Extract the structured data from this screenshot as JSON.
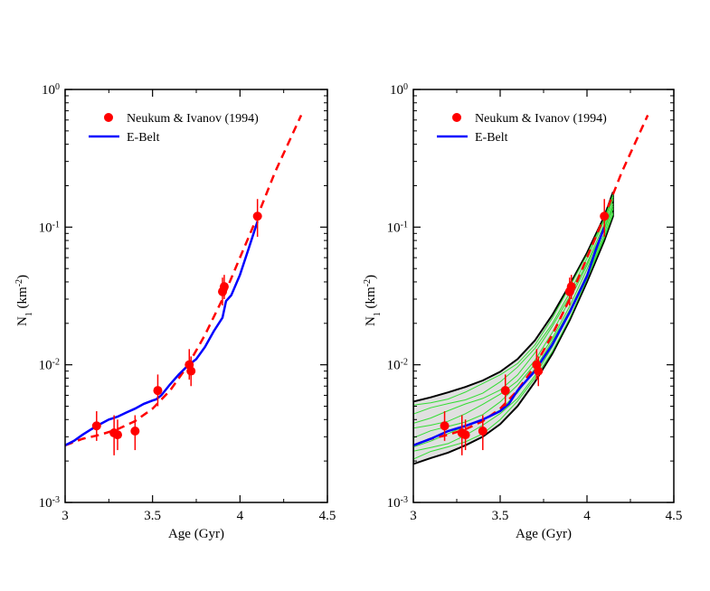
{
  "chart_data": [
    {
      "type": "scatter",
      "panel": "left",
      "xlabel": "Age (Gyr)",
      "ylabel": {
        "main": "N",
        "sub": "1",
        "unit_pre": " (km",
        "unit_sup": "-2",
        "unit_post": ")"
      },
      "xlim": [
        3,
        4.5
      ],
      "ylim": [
        0.001,
        1
      ],
      "yscale": "log",
      "xticks": [
        3,
        3.5,
        4,
        4.5
      ],
      "xtick_labels": [
        "3",
        "3.5",
        "4",
        "4.5"
      ],
      "yticks": [
        {
          "value": 0.001,
          "base": "10",
          "exp": "-3"
        },
        {
          "value": 0.01,
          "base": "10",
          "exp": "-2"
        },
        {
          "value": 0.1,
          "base": "10",
          "exp": "-1"
        },
        {
          "value": 1,
          "base": "10",
          "exp": "0"
        }
      ],
      "legend": [
        {
          "label": "Neukum & Ivanov (1994)",
          "kind": "marker",
          "color": "#ff0000"
        },
        {
          "label": "E-Belt",
          "kind": "line",
          "color": "#0000ff"
        }
      ],
      "series": [
        {
          "name": "Neukum & Ivanov (1994)",
          "kind": "points",
          "color": "#ff0000",
          "points": [
            {
              "x": 3.18,
              "y": 0.0036,
              "ylo": 0.0028,
              "yhi": 0.0046
            },
            {
              "x": 3.28,
              "y": 0.0032,
              "ylo": 0.0022,
              "yhi": 0.0043
            },
            {
              "x": 3.3,
              "y": 0.0031,
              "ylo": 0.0024,
              "yhi": 0.004
            },
            {
              "x": 3.4,
              "y": 0.0033,
              "ylo": 0.0024,
              "yhi": 0.0043
            },
            {
              "x": 3.53,
              "y": 0.0065,
              "ylo": 0.005,
              "yhi": 0.0085
            },
            {
              "x": 3.71,
              "y": 0.01,
              "ylo": 0.0078,
              "yhi": 0.013
            },
            {
              "x": 3.72,
              "y": 0.009,
              "ylo": 0.007,
              "yhi": 0.0115
            },
            {
              "x": 3.9,
              "y": 0.034,
              "ylo": 0.027,
              "yhi": 0.043
            },
            {
              "x": 3.91,
              "y": 0.037,
              "ylo": 0.03,
              "yhi": 0.045
            },
            {
              "x": 4.1,
              "y": 0.12,
              "ylo": 0.085,
              "yhi": 0.16
            }
          ]
        },
        {
          "name": "Neukum fit",
          "kind": "dashed-line",
          "color": "#ff0000",
          "x": [
            3.0,
            3.1,
            3.2,
            3.3,
            3.4,
            3.5,
            3.6,
            3.7,
            3.8,
            3.9,
            4.0,
            4.1,
            4.2,
            4.35
          ],
          "y": [
            0.0026,
            0.0029,
            0.0031,
            0.0034,
            0.0039,
            0.0048,
            0.0065,
            0.0098,
            0.0165,
            0.03,
            0.06,
            0.12,
            0.25,
            0.65
          ]
        },
        {
          "name": "E-Belt",
          "kind": "line",
          "color": "#0000ff",
          "x": [
            3.0,
            3.05,
            3.1,
            3.15,
            3.2,
            3.25,
            3.3,
            3.35,
            3.4,
            3.45,
            3.5,
            3.52,
            3.55,
            3.6,
            3.65,
            3.7,
            3.75,
            3.8,
            3.85,
            3.9,
            3.92,
            3.95,
            4.0,
            4.05,
            4.1
          ],
          "y": [
            0.0026,
            0.0028,
            0.0031,
            0.0034,
            0.0037,
            0.004,
            0.0042,
            0.0045,
            0.0048,
            0.0052,
            0.0055,
            0.0056,
            0.006,
            0.0072,
            0.0085,
            0.0098,
            0.011,
            0.0135,
            0.0175,
            0.022,
            0.029,
            0.032,
            0.045,
            0.07,
            0.11
          ]
        }
      ]
    },
    {
      "type": "scatter",
      "panel": "right",
      "xlabel": "Age (Gyr)",
      "ylabel": {
        "main": "N",
        "sub": "1",
        "unit_pre": " (km",
        "unit_sup": "-2",
        "unit_post": ")"
      },
      "xlim": [
        3,
        4.5
      ],
      "ylim": [
        0.001,
        1
      ],
      "yscale": "log",
      "xticks": [
        3,
        3.5,
        4,
        4.5
      ],
      "xtick_labels": [
        "3",
        "3.5",
        "4",
        "4.5"
      ],
      "yticks": [
        {
          "value": 0.001,
          "base": "10",
          "exp": "-3"
        },
        {
          "value": 0.01,
          "base": "10",
          "exp": "-2"
        },
        {
          "value": 0.1,
          "base": "10",
          "exp": "-1"
        },
        {
          "value": 1,
          "base": "10",
          "exp": "0"
        }
      ],
      "legend": [
        {
          "label": "Neukum & Ivanov (1994)",
          "kind": "marker",
          "color": "#ff0000"
        },
        {
          "label": "E-Belt",
          "kind": "line",
          "color": "#0000ff"
        }
      ],
      "envelope": {
        "fill": "#e0e0e0",
        "stroke": "#000000",
        "x_upper": [
          3.0,
          3.1,
          3.2,
          3.3,
          3.4,
          3.5,
          3.6,
          3.7,
          3.8,
          3.9,
          4.0,
          4.1,
          4.15
        ],
        "y_upper": [
          0.0054,
          0.0058,
          0.0063,
          0.0069,
          0.0077,
          0.0089,
          0.011,
          0.015,
          0.023,
          0.038,
          0.065,
          0.12,
          0.18
        ],
        "x_lower": [
          3.0,
          3.1,
          3.2,
          3.3,
          3.4,
          3.5,
          3.6,
          3.7,
          3.8,
          3.9,
          4.0,
          4.1,
          4.15
        ],
        "y_lower": [
          0.0019,
          0.0021,
          0.0023,
          0.0026,
          0.003,
          0.0037,
          0.005,
          0.0075,
          0.012,
          0.021,
          0.04,
          0.08,
          0.12
        ]
      },
      "green_curves": {
        "color": "#33dd33",
        "x": [
          3.0,
          3.1,
          3.2,
          3.3,
          3.4,
          3.5,
          3.6,
          3.7,
          3.8,
          3.9,
          4.0,
          4.1,
          4.15
        ],
        "fractions": [
          0.08,
          0.18,
          0.3,
          0.42,
          0.55,
          0.68,
          0.8,
          0.92
        ]
      },
      "series": [
        {
          "name": "Neukum & Ivanov (1994)",
          "kind": "points",
          "color": "#ff0000",
          "points": [
            {
              "x": 3.18,
              "y": 0.0036,
              "ylo": 0.0028,
              "yhi": 0.0046
            },
            {
              "x": 3.28,
              "y": 0.0032,
              "ylo": 0.0022,
              "yhi": 0.0043
            },
            {
              "x": 3.3,
              "y": 0.0031,
              "ylo": 0.0024,
              "yhi": 0.004
            },
            {
              "x": 3.4,
              "y": 0.0033,
              "ylo": 0.0024,
              "yhi": 0.0043
            },
            {
              "x": 3.53,
              "y": 0.0065,
              "ylo": 0.005,
              "yhi": 0.0085
            },
            {
              "x": 3.71,
              "y": 0.01,
              "ylo": 0.0078,
              "yhi": 0.013
            },
            {
              "x": 3.72,
              "y": 0.009,
              "ylo": 0.007,
              "yhi": 0.0115
            },
            {
              "x": 3.9,
              "y": 0.034,
              "ylo": 0.027,
              "yhi": 0.043
            },
            {
              "x": 3.91,
              "y": 0.037,
              "ylo": 0.03,
              "yhi": 0.045
            },
            {
              "x": 4.1,
              "y": 0.12,
              "ylo": 0.085,
              "yhi": 0.16
            }
          ]
        },
        {
          "name": "Neukum fit",
          "kind": "dashed-line",
          "color": "#ff0000",
          "x": [
            3.0,
            3.1,
            3.2,
            3.3,
            3.4,
            3.5,
            3.6,
            3.7,
            3.8,
            3.9,
            4.0,
            4.1,
            4.2,
            4.35
          ],
          "y": [
            0.0026,
            0.0029,
            0.0031,
            0.0034,
            0.0039,
            0.0048,
            0.0065,
            0.0098,
            0.0165,
            0.03,
            0.06,
            0.12,
            0.25,
            0.65
          ]
        },
        {
          "name": "E-Belt",
          "kind": "line",
          "color": "#0000ff",
          "x": [
            3.0,
            3.1,
            3.2,
            3.3,
            3.4,
            3.5,
            3.55,
            3.6,
            3.7,
            3.8,
            3.9,
            4.0,
            4.05,
            4.1
          ],
          "y": [
            0.0026,
            0.0029,
            0.0033,
            0.0036,
            0.004,
            0.0046,
            0.0052,
            0.0065,
            0.009,
            0.014,
            0.024,
            0.044,
            0.068,
            0.1
          ]
        }
      ]
    }
  ]
}
